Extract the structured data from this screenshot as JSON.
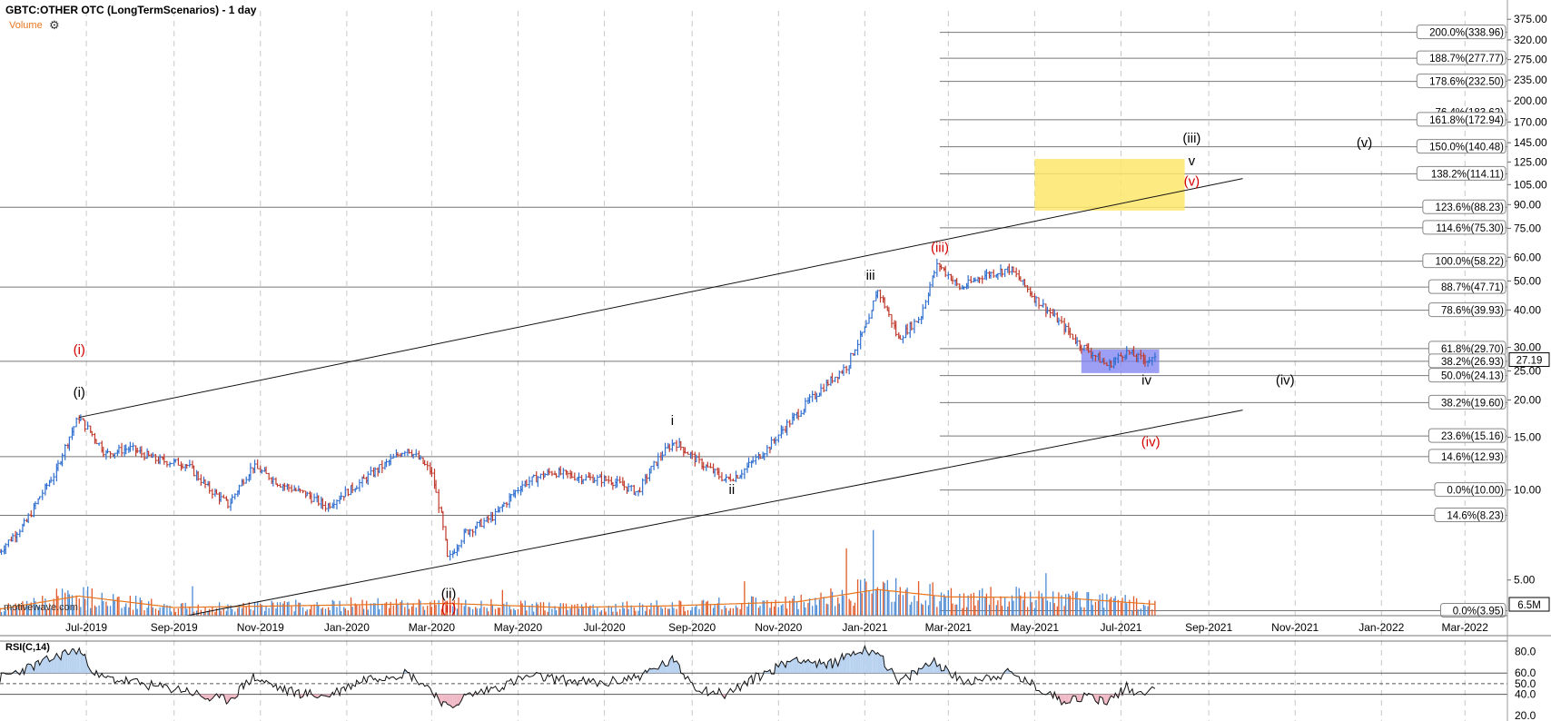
{
  "header": {
    "title": "GBTC:OTHER OTC (LongTermScenarios) - 1 day",
    "volume_label": "Volume",
    "settings_icon": "gear-icon"
  },
  "watermark": "motivewave.com",
  "rsi_label": "RSI(C,14)",
  "colors": {
    "up": "#2f6fd0",
    "down": "#c0392b",
    "volume_up": "#4a8ad4",
    "volume_down": "#e05a2a",
    "volume_ma": "#e8761e",
    "target_box": "#fde66a",
    "support_box": "#7b7ff0",
    "red_label": "#d40000",
    "rsi_fill_high": "#b9d2f0",
    "rsi_fill_low": "#f0b9c6"
  },
  "chart_data": {
    "type": "candlestick",
    "scale": "log",
    "ylim": [
      3.8,
      400
    ],
    "x_range": [
      "2019-05-01",
      "2022-03-31"
    ],
    "x_ticks": [
      "Jul-2019",
      "Sep-2019",
      "Nov-2019",
      "Jan-2020",
      "Mar-2020",
      "May-2020",
      "Jul-2020",
      "Sep-2020",
      "Nov-2020",
      "Jan-2021",
      "Mar-2021",
      "May-2021",
      "Jul-2021",
      "Sep-2021",
      "Nov-2021",
      "Jan-2022",
      "Mar-2022"
    ],
    "y_ticks": [
      375.0,
      320.0,
      275.0,
      235.0,
      200.0,
      170.0,
      145.0,
      125.0,
      105.0,
      90.0,
      75.0,
      60.0,
      50.0,
      40.0,
      30.0,
      25.0,
      20.0,
      15.0,
      10.0,
      5.0
    ],
    "last_price": "27.19",
    "volume_last": "6.5M",
    "price_path": [
      [
        "2019-05-01",
        6.2
      ],
      [
        "2019-05-20",
        7.8
      ],
      [
        "2019-06-10",
        11.5
      ],
      [
        "2019-06-26",
        17.5
      ],
      [
        "2019-07-15",
        13.2
      ],
      [
        "2019-08-01",
        13.8
      ],
      [
        "2019-08-20",
        12.6
      ],
      [
        "2019-09-10",
        12.2
      ],
      [
        "2019-09-25",
        10.2
      ],
      [
        "2019-10-10",
        8.9
      ],
      [
        "2019-10-27",
        12.0
      ],
      [
        "2019-11-15",
        10.5
      ],
      [
        "2019-12-05",
        9.6
      ],
      [
        "2019-12-18",
        8.8
      ],
      [
        "2020-01-10",
        10.5
      ],
      [
        "2020-02-01",
        12.5
      ],
      [
        "2020-02-13",
        13.8
      ],
      [
        "2020-03-01",
        11.5
      ],
      [
        "2020-03-13",
        5.8
      ],
      [
        "2020-03-25",
        7.2
      ],
      [
        "2020-04-15",
        8.2
      ],
      [
        "2020-05-05",
        10.5
      ],
      [
        "2020-05-25",
        11.5
      ],
      [
        "2020-06-15",
        11.0
      ],
      [
        "2020-07-05",
        10.8
      ],
      [
        "2020-07-25",
        9.8
      ],
      [
        "2020-08-10",
        13.0
      ],
      [
        "2020-08-20",
        14.5
      ],
      [
        "2020-09-05",
        12.5
      ],
      [
        "2020-09-25",
        10.8
      ],
      [
        "2020-10-05",
        11.3
      ],
      [
        "2020-10-25",
        13.8
      ],
      [
        "2020-11-15",
        18.0
      ],
      [
        "2020-12-05",
        22.5
      ],
      [
        "2020-12-20",
        26.0
      ],
      [
        "2021-01-05",
        37.0
      ],
      [
        "2021-01-10",
        47.0
      ],
      [
        "2021-01-25",
        32.0
      ],
      [
        "2021-02-10",
        38.0
      ],
      [
        "2021-02-22",
        57.0
      ],
      [
        "2021-03-10",
        47.0
      ],
      [
        "2021-03-25",
        52.0
      ],
      [
        "2021-04-14",
        55.0
      ],
      [
        "2021-05-01",
        44.0
      ],
      [
        "2021-05-15",
        38.0
      ],
      [
        "2021-06-01",
        31.0
      ],
      [
        "2021-06-22",
        26.0
      ],
      [
        "2021-07-05",
        29.0
      ],
      [
        "2021-07-15",
        27.5
      ],
      [
        "2021-07-25",
        27.19
      ]
    ],
    "volume_path": [
      [
        "2019-05-01",
        0.8
      ],
      [
        "2019-06-26",
        2.4
      ],
      [
        "2019-09-01",
        1.0
      ],
      [
        "2020-03-13",
        1.5
      ],
      [
        "2020-06-01",
        1.0
      ],
      [
        "2020-08-15",
        1.2
      ],
      [
        "2020-11-15",
        1.7
      ],
      [
        "2021-01-10",
        3.2
      ],
      [
        "2021-03-01",
        2.3
      ],
      [
        "2021-05-20",
        2.2
      ],
      [
        "2021-07-25",
        1.4
      ]
    ],
    "rsi_ylim": [
      15,
      90
    ],
    "rsi_ticks": [
      80.0,
      60.0,
      50.0,
      40.0,
      20.0
    ],
    "rsi_levels": [
      60,
      50,
      40
    ],
    "rsi_path": [
      [
        "2019-05-01",
        55
      ],
      [
        "2019-05-15",
        62
      ],
      [
        "2019-06-01",
        70
      ],
      [
        "2019-06-15",
        78
      ],
      [
        "2019-06-26",
        82
      ],
      [
        "2019-07-10",
        56
      ],
      [
        "2019-08-01",
        52
      ],
      [
        "2019-08-20",
        47
      ],
      [
        "2019-09-10",
        44
      ],
      [
        "2019-09-25",
        36
      ],
      [
        "2019-10-10",
        35
      ],
      [
        "2019-10-27",
        56
      ],
      [
        "2019-11-20",
        43
      ],
      [
        "2019-12-18",
        38
      ],
      [
        "2020-01-15",
        55
      ],
      [
        "2020-02-13",
        60
      ],
      [
        "2020-03-01",
        45
      ],
      [
        "2020-03-13",
        26
      ],
      [
        "2020-03-25",
        38
      ],
      [
        "2020-04-20",
        48
      ],
      [
        "2020-05-10",
        57
      ],
      [
        "2020-06-05",
        53
      ],
      [
        "2020-07-01",
        50
      ],
      [
        "2020-07-28",
        58
      ],
      [
        "2020-08-18",
        72
      ],
      [
        "2020-09-05",
        46
      ],
      [
        "2020-09-25",
        40
      ],
      [
        "2020-10-20",
        58
      ],
      [
        "2020-11-15",
        75
      ],
      [
        "2020-12-05",
        66
      ],
      [
        "2020-12-25",
        80
      ],
      [
        "2021-01-10",
        82
      ],
      [
        "2021-01-25",
        50
      ],
      [
        "2021-02-20",
        72
      ],
      [
        "2021-03-10",
        52
      ],
      [
        "2021-04-14",
        60
      ],
      [
        "2021-05-01",
        48
      ],
      [
        "2021-05-20",
        35
      ],
      [
        "2021-06-10",
        38
      ],
      [
        "2021-06-22",
        33
      ],
      [
        "2021-07-05",
        47
      ],
      [
        "2021-07-15",
        40
      ],
      [
        "2021-07-25",
        50
      ]
    ],
    "horizontal_levels": [
      {
        "label": "200.0%(338.96)",
        "value": 338.96,
        "start": "2021-02-23"
      },
      {
        "label": "188.7%(277.77)",
        "value": 277.77,
        "start": "2021-02-23"
      },
      {
        "label": "178.6%(232.50)",
        "value": 232.5,
        "start": "2021-02-23"
      },
      {
        "label": "161.8%(172.94)",
        "value": 172.94,
        "start": "2021-02-23"
      },
      {
        "label": "150.0%(140.48)",
        "value": 140.48,
        "start": "2021-02-23"
      },
      {
        "label": "138.2%(114.11)",
        "value": 114.11,
        "start": "2021-02-23"
      },
      {
        "label": "123.6%(88.23)",
        "value": 88.23,
        "start": "2019-05-01"
      },
      {
        "label": "114.6%(75.30)",
        "value": 75.3,
        "start": "2021-02-23"
      },
      {
        "label": "100.0%(58.22)",
        "value": 58.22,
        "start": "2021-02-23"
      },
      {
        "label": "88.7%(47.71)",
        "value": 47.71,
        "start": "2019-05-01"
      },
      {
        "label": "78.6%(39.93)",
        "value": 39.93,
        "start": "2021-02-23"
      },
      {
        "label": "61.8%(29.70)",
        "value": 29.7,
        "start": "2021-02-23"
      },
      {
        "label": "38.2%(26.93)",
        "value": 26.93,
        "start": "2019-05-01"
      },
      {
        "label": "50.0%(24.13)",
        "value": 24.13,
        "start": "2021-02-23"
      },
      {
        "label": "38.2%(19.60)",
        "value": 19.6,
        "start": "2021-02-23"
      },
      {
        "label": "23.6%(15.16)",
        "value": 15.16,
        "start": "2021-02-23"
      },
      {
        "label": "14.6%(12.93)",
        "value": 12.93,
        "start": "2019-05-01"
      },
      {
        "label": "0.0%(10.00)",
        "value": 10.0,
        "start": "2021-02-23"
      },
      {
        "label": "14.6%(8.23)",
        "value": 8.23,
        "start": "2019-05-01"
      },
      {
        "label": "0.0%(3.95)",
        "value": 3.95,
        "start": "2021-02-23"
      }
    ],
    "overlapped_level_label": "76.4%(183.62)",
    "overlapped_level_value": 183.62,
    "trend_lines": [
      {
        "from": [
          "2019-06-26",
          17.5
        ],
        "to": [
          "2021-09-25",
          110
        ]
      },
      {
        "from": [
          "2019-09-10",
          3.8
        ],
        "to": [
          "2021-09-25",
          18.5
        ]
      }
    ],
    "boxes": [
      {
        "name": "target-zone",
        "x0": "2021-05-01",
        "x1": "2021-08-15",
        "y0": 86,
        "y1": 128,
        "color": "target_box"
      },
      {
        "name": "support-zone",
        "x0": "2021-06-03",
        "x1": "2021-07-28",
        "y0": 24.6,
        "y1": 29.5,
        "color": "support_box"
      }
    ],
    "wave_labels": [
      {
        "text": "(i)",
        "date": "2019-06-26",
        "value": 28.5,
        "color": "red"
      },
      {
        "text": "(i)",
        "date": "2019-06-26",
        "value": 20.5,
        "color": "black"
      },
      {
        "text": "(ii)",
        "date": "2020-03-13",
        "value": 4.35,
        "color": "black"
      },
      {
        "text": "(ii)",
        "date": "2020-03-13",
        "value": 3.9,
        "color": "red"
      },
      {
        "text": "i",
        "date": "2020-08-18",
        "value": 16.5,
        "color": "black"
      },
      {
        "text": "ii",
        "date": "2020-09-29",
        "value": 9.7,
        "color": "black"
      },
      {
        "text": "iii",
        "date": "2021-01-05",
        "value": 50.5,
        "color": "black"
      },
      {
        "text": "(iii)",
        "date": "2021-02-23",
        "value": 62.5,
        "color": "red"
      },
      {
        "text": "iv",
        "date": "2021-07-19",
        "value": 22.5,
        "color": "black"
      },
      {
        "text": "(iii)",
        "date": "2021-08-20",
        "value": 145,
        "color": "black"
      },
      {
        "text": "v",
        "date": "2021-08-20",
        "value": 122,
        "color": "black"
      },
      {
        "text": "(v)",
        "date": "2021-08-20",
        "value": 104,
        "color": "red"
      },
      {
        "text": "(iv)",
        "date": "2021-07-22",
        "value": 14.0,
        "color": "red"
      },
      {
        "text": "(iv)",
        "date": "2021-10-25",
        "value": 22.5,
        "color": "black"
      },
      {
        "text": "(v)",
        "date": "2021-12-20",
        "value": 140,
        "color": "black"
      }
    ]
  }
}
